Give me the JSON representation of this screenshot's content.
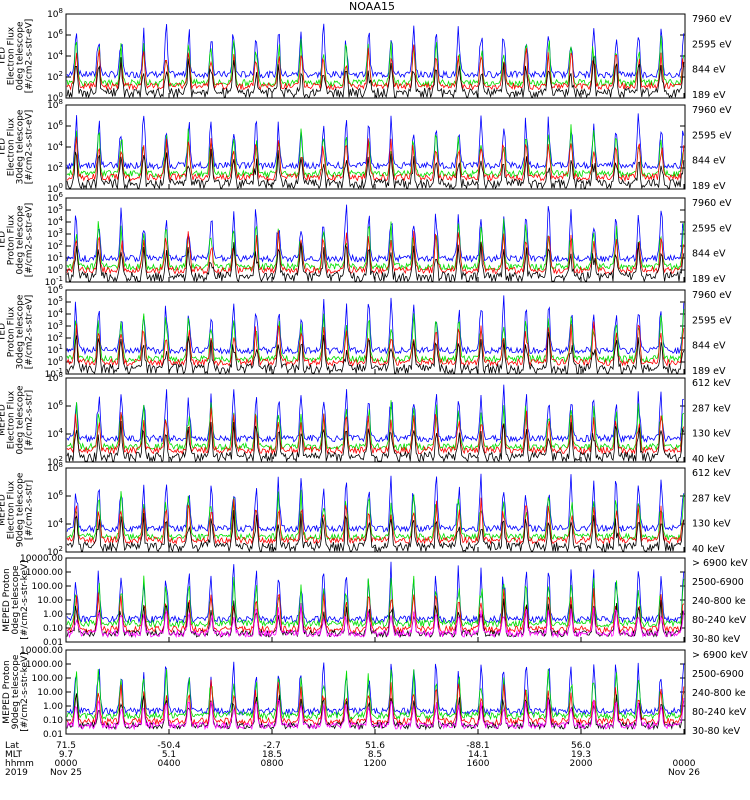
{
  "title": "NOAA15",
  "colors": {
    "blue": "#0000ff",
    "red": "#ff0000",
    "green": "#00e000",
    "black": "#000000",
    "magenta": "#ff00ff"
  },
  "chart_data": [
    {
      "type": "line",
      "panel": "TED Electron Flux 0deg telescope",
      "ylabel": [
        "TED",
        "Electron Flux",
        "0deg telescope",
        "[#/cm2-s-str-eV]"
      ],
      "ytick_labels": [
        "10^0",
        "10^2",
        "10^4",
        "10^6",
        "10^8"
      ],
      "ylim_exp": [
        0,
        8
      ],
      "log": true,
      "legend": [
        {
          "name": "7960 eV",
          "color": "black"
        },
        {
          "name": "2595 eV",
          "color": "red"
        },
        {
          "name": "844 eV",
          "color": "green"
        },
        {
          "name": "189 eV",
          "color": "blue"
        }
      ]
    },
    {
      "type": "line",
      "panel": "TED Electron Flux 30deg telescope",
      "ylabel": [
        "TED",
        "Electron Flux",
        "30deg telescope",
        "[#/cm2-s-str-eV]"
      ],
      "ytick_labels": [
        "10^0",
        "10^2",
        "10^4",
        "10^6",
        "10^8"
      ],
      "ylim_exp": [
        0,
        8
      ],
      "log": true,
      "legend": [
        {
          "name": "7960 eV",
          "color": "black"
        },
        {
          "name": "2595 eV",
          "color": "red"
        },
        {
          "name": "844 eV",
          "color": "green"
        },
        {
          "name": "189 eV",
          "color": "blue"
        }
      ]
    },
    {
      "type": "line",
      "panel": "TED Proton Flux 0deg telescope",
      "ylabel": [
        "TED",
        "Proton Flux",
        "0deg telescope",
        "[#/cm2-s-str-eV]"
      ],
      "ytick_labels": [
        "10^-1",
        "10^0",
        "10^1",
        "10^2",
        "10^3",
        "10^4",
        "10^5",
        "10^6"
      ],
      "ylim_exp": [
        -1,
        6
      ],
      "log": true,
      "legend": [
        {
          "name": "7960 eV",
          "color": "black"
        },
        {
          "name": "2595 eV",
          "color": "red"
        },
        {
          "name": "844 eV",
          "color": "green"
        },
        {
          "name": "189 eV",
          "color": "blue"
        }
      ]
    },
    {
      "type": "line",
      "panel": "TED Proton Flux 30deg telescope",
      "ylabel": [
        "TED",
        "Proton Flux",
        "30deg telescope",
        "[#/cm2-s-str-eV]"
      ],
      "ytick_labels": [
        "10^-1",
        "10^0",
        "10^1",
        "10^2",
        "10^3",
        "10^4",
        "10^5",
        "10^6"
      ],
      "ylim_exp": [
        -1,
        6
      ],
      "log": true,
      "legend": [
        {
          "name": "7960 eV",
          "color": "black"
        },
        {
          "name": "2595 eV",
          "color": "red"
        },
        {
          "name": "844 eV",
          "color": "green"
        },
        {
          "name": "189 eV",
          "color": "blue"
        }
      ]
    },
    {
      "type": "line",
      "panel": "MEPED Electron Flux 0deg telescope",
      "ylabel": [
        "MEPED",
        "Electron Flux",
        "0deg telescope",
        "[#/cm2-s-str]"
      ],
      "ytick_labels": [
        "10^2",
        "10^4",
        "10^6",
        "10^8"
      ],
      "ylim_exp": [
        1,
        8
      ],
      "log": true,
      "legend": [
        {
          "name": "612 keV",
          "color": "black"
        },
        {
          "name": "287 keV",
          "color": "red"
        },
        {
          "name": "130 keV",
          "color": "green"
        },
        {
          "name": "40 keV",
          "color": "blue"
        }
      ]
    },
    {
      "type": "line",
      "panel": "MEPED Electron Flux 90deg telescope",
      "ylabel": [
        "MEPED",
        "Electron Flux",
        "90deg telescope",
        "[#/cm2-s-str]"
      ],
      "ytick_labels": [
        "10^2",
        "10^4",
        "10^6",
        "10^8"
      ],
      "ylim_exp": [
        1,
        8
      ],
      "log": true,
      "legend": [
        {
          "name": "612 keV",
          "color": "black"
        },
        {
          "name": "287 keV",
          "color": "red"
        },
        {
          "name": "130 keV",
          "color": "green"
        },
        {
          "name": "40 keV",
          "color": "blue"
        }
      ]
    },
    {
      "type": "line",
      "panel": "MEPED Proton Flux 0deg",
      "ylabel": [
        "MEPED Proton",
        "0deg telescope",
        "[#/cm2-s-str-keV]"
      ],
      "ytick_labels": [
        "0.01",
        "0.10",
        "1.00",
        "10.00",
        "100.00",
        "1000.00",
        "10000.00"
      ],
      "ylim_exp": [
        -2,
        4
      ],
      "log": true,
      "legend": [
        {
          "name": "> 6900 keV",
          "color": "magenta"
        },
        {
          "name": "2500-6900",
          "color": "black"
        },
        {
          "name": "240-800 ke",
          "color": "red"
        },
        {
          "name": "80-240 keV",
          "color": "green"
        },
        {
          "name": "30-80 keV",
          "color": "blue"
        }
      ]
    },
    {
      "type": "line",
      "panel": "MEPED Proton Flux 90deg",
      "ylabel": [
        "MEPED Proton",
        "90deg telescope",
        "[#/cm2-s-str-keV]"
      ],
      "ytick_labels": [
        "0.01",
        "0.10",
        "1.00",
        "10.00",
        "100.00",
        "1000.00",
        "10000.00"
      ],
      "ylim_exp": [
        -2,
        4
      ],
      "log": true,
      "legend": [
        {
          "name": "> 6900 keV",
          "color": "magenta"
        },
        {
          "name": "2500-6900",
          "color": "black"
        },
        {
          "name": "240-800 ke",
          "color": "red"
        },
        {
          "name": "80-240 keV",
          "color": "green"
        },
        {
          "name": "30-80 keV",
          "color": "blue"
        }
      ]
    }
  ],
  "xaxis": {
    "row_labels": [
      "Lat",
      "MLT",
      "hhmm",
      "2019"
    ],
    "ticks": [
      {
        "lat": "71.5",
        "mlt": "9.7",
        "hhmm": "0000",
        "date": "Nov 25"
      },
      {
        "lat": "-50.4",
        "mlt": "5.1",
        "hhmm": "0400",
        "date": ""
      },
      {
        "lat": "-2.7",
        "mlt": "18.5",
        "hhmm": "0800",
        "date": ""
      },
      {
        "lat": "51.6",
        "mlt": "8.5",
        "hhmm": "1200",
        "date": ""
      },
      {
        "lat": "-88.1",
        "mlt": "14.1",
        "hhmm": "1600",
        "date": ""
      },
      {
        "lat": "56.0",
        "mlt": "19.3",
        "hhmm": "2000",
        "date": ""
      },
      {
        "lat": "",
        "mlt": "",
        "hhmm": "0000",
        "date": "Nov 26"
      }
    ]
  }
}
